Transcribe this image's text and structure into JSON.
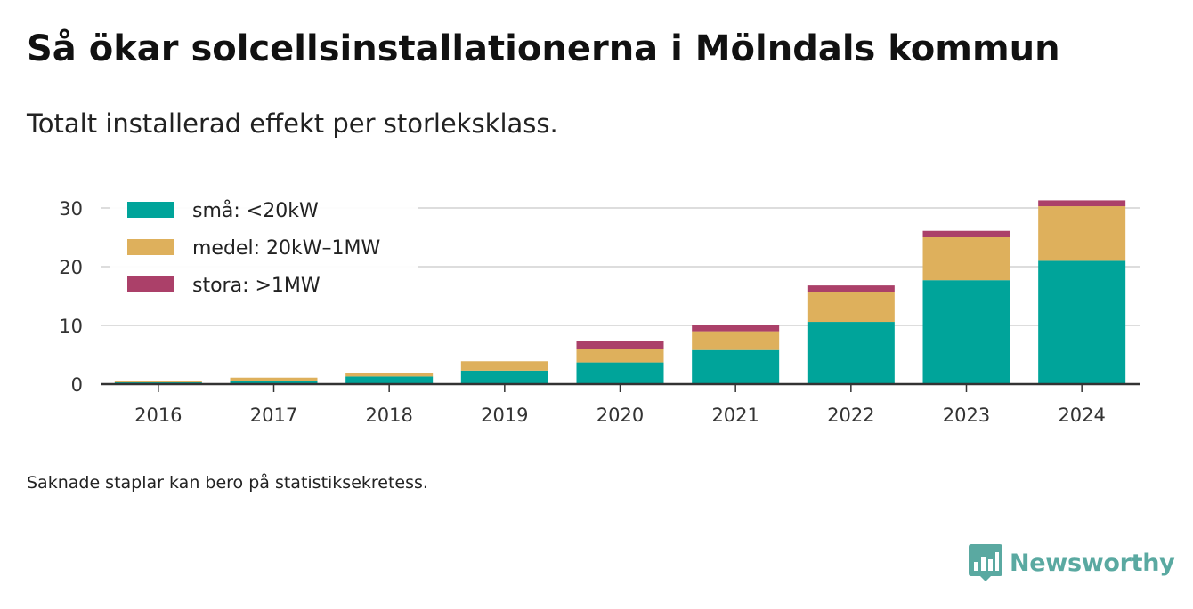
{
  "title": "Så ökar solcellsinstallationerna i Mölndals kommun",
  "subtitle": "Totalt installerad effekt per storleksklass.",
  "footnote": "Saknade staplar kan bero på statistiksekretess.",
  "brand": "Newsworthy",
  "logo_icon": "bar-chart-speech-bubble-icon",
  "colors": {
    "small": "#00a49a",
    "medium": "#deb05c",
    "large": "#ab4069",
    "grid": "#dddddd",
    "axis": "#333333",
    "brand": "#5aa9a1"
  },
  "chart_data": {
    "type": "bar",
    "stacked": true,
    "title": "Så ökar solcellsinstallationerna i Mölndals kommun",
    "subtitle": "Totalt installerad effekt per storleksklass.",
    "xlabel": "",
    "ylabel": "",
    "categories": [
      "2016",
      "2017",
      "2018",
      "2019",
      "2020",
      "2021",
      "2022",
      "2023",
      "2024"
    ],
    "y_ticks": [
      0,
      10,
      20,
      30
    ],
    "ylim": [
      0,
      32
    ],
    "grid": true,
    "legend_position": "top-left",
    "series": [
      {
        "name": "små: <20kW",
        "color": "#00a49a",
        "values": [
          0.3,
          0.6,
          1.3,
          2.3,
          3.7,
          5.8,
          10.6,
          17.7,
          21.0
        ]
      },
      {
        "name": "medel: 20kW–1MW",
        "color": "#deb05c",
        "values": [
          0.2,
          0.5,
          0.6,
          1.6,
          2.3,
          3.2,
          5.1,
          7.3,
          9.3
        ]
      },
      {
        "name": "stora: >1MW",
        "color": "#ab4069",
        "values": [
          0,
          0,
          0,
          0,
          1.4,
          1.1,
          1.1,
          1.1,
          1.0
        ]
      }
    ]
  }
}
